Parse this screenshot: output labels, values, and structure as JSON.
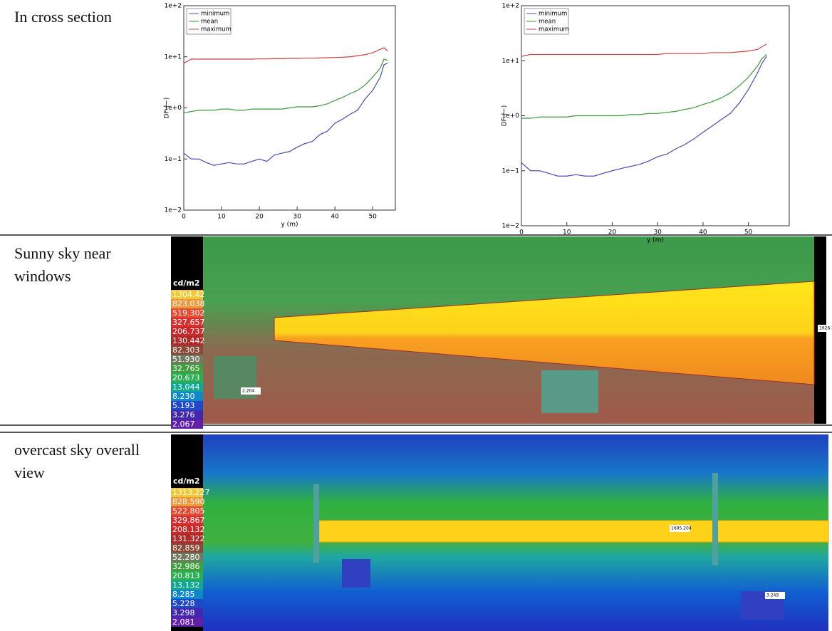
{
  "table": {
    "rows": [
      [
        "In cross section"
      ],
      [
        "Sunny sky near windows"
      ],
      [
        "overcast sky overall view"
      ]
    ]
  },
  "chart_data": [
    {
      "type": "line",
      "xlabel": "y (m)",
      "ylabel": "DF (−)",
      "log_y": true,
      "legend": "upper left",
      "x": [
        0,
        2,
        4,
        6,
        8,
        10,
        12,
        14,
        16,
        18,
        20,
        22,
        24,
        26,
        28,
        30,
        32,
        34,
        36,
        38,
        40,
        42,
        44,
        46,
        48,
        50,
        52,
        53,
        54
      ],
      "series": [
        {
          "name": "minimum",
          "color": "#4b4bb4",
          "values": [
            0.13,
            0.1,
            0.1,
            0.085,
            0.075,
            0.08,
            0.085,
            0.08,
            0.08,
            0.09,
            0.1,
            0.09,
            0.12,
            0.13,
            0.14,
            0.17,
            0.2,
            0.22,
            0.3,
            0.35,
            0.5,
            0.6,
            0.75,
            0.9,
            1.5,
            2.2,
            4,
            7,
            7.5
          ]
        },
        {
          "name": "mean",
          "color": "#3a9a3a",
          "values": [
            0.8,
            0.85,
            0.9,
            0.9,
            0.9,
            0.95,
            0.95,
            0.9,
            0.9,
            0.95,
            0.95,
            0.95,
            0.95,
            0.95,
            1.0,
            1.05,
            1.05,
            1.05,
            1.1,
            1.2,
            1.4,
            1.6,
            1.9,
            2.2,
            2.8,
            4,
            6,
            9,
            8.5
          ]
        },
        {
          "name": "maximum",
          "color": "#d04040",
          "values": [
            7.5,
            9,
            9,
            9,
            9,
            9,
            9,
            9,
            9,
            9,
            9.1,
            9.1,
            9.2,
            9.2,
            9.3,
            9.3,
            9.4,
            9.4,
            9.5,
            9.6,
            9.7,
            9.8,
            10,
            10.5,
            11,
            12,
            14,
            15,
            13
          ]
        }
      ],
      "xlim": [
        0,
        56
      ],
      "xticks": [
        0,
        10,
        20,
        30,
        40,
        50
      ],
      "ylim": [
        0.01,
        100
      ],
      "yticks": [
        {
          "value": 0.01,
          "label": "1e−2"
        },
        {
          "value": 0.1,
          "label": "1e−1"
        },
        {
          "value": 1,
          "label": "1e+0"
        },
        {
          "value": 10,
          "label": "1e+1"
        },
        {
          "value": 100,
          "label": "1e+2"
        }
      ]
    },
    {
      "type": "line",
      "xlabel": "y (m)",
      "ylabel": "DF (−)",
      "log_y": true,
      "legend": "upper left",
      "x": [
        0,
        2,
        4,
        6,
        8,
        10,
        12,
        14,
        16,
        18,
        20,
        22,
        24,
        26,
        28,
        30,
        32,
        34,
        36,
        38,
        40,
        42,
        44,
        46,
        48,
        50,
        52,
        53,
        54
      ],
      "series": [
        {
          "name": "minimum",
          "color": "#4b4bb4",
          "values": [
            0.14,
            0.1,
            0.1,
            0.09,
            0.08,
            0.08,
            0.085,
            0.08,
            0.08,
            0.09,
            0.1,
            0.11,
            0.12,
            0.13,
            0.15,
            0.18,
            0.2,
            0.25,
            0.3,
            0.38,
            0.5,
            0.65,
            0.85,
            1.1,
            1.7,
            3,
            6,
            9,
            12
          ]
        },
        {
          "name": "mean",
          "color": "#3a9a3a",
          "values": [
            0.9,
            0.9,
            0.95,
            0.95,
            0.95,
            0.95,
            1.0,
            1.0,
            1.0,
            1.0,
            1.0,
            1.0,
            1.05,
            1.05,
            1.1,
            1.1,
            1.15,
            1.2,
            1.3,
            1.4,
            1.6,
            1.8,
            2.1,
            2.6,
            3.5,
            5,
            8,
            11,
            13
          ]
        },
        {
          "name": "maximum",
          "color": "#d04040",
          "values": [
            12,
            13,
            13,
            13,
            13,
            13,
            13,
            13,
            13,
            13,
            13,
            13,
            13,
            13,
            13,
            13,
            13.5,
            13.5,
            13.5,
            13.5,
            13.5,
            14,
            14,
            14,
            14.5,
            15,
            16,
            18,
            20
          ]
        }
      ],
      "xlim": [
        0,
        59
      ],
      "xticks": [
        0,
        10,
        20,
        30,
        40,
        50
      ],
      "ylim": [
        0.01,
        100
      ],
      "yticks": [
        {
          "value": 0.01,
          "label": "1e−2"
        },
        {
          "value": 0.1,
          "label": "1e−1"
        },
        {
          "value": 1,
          "label": "1e+0"
        },
        {
          "value": 10,
          "label": "1e+1"
        },
        {
          "value": 100,
          "label": "1e+2"
        }
      ]
    }
  ],
  "images": [
    {
      "legend_title": "cd/m2",
      "legend": [
        "1304.42",
        "823.038",
        "519.302",
        "327.657",
        "206.737",
        "130.442",
        "82.303",
        "51.930",
        "32.765",
        "20.673",
        "13.044",
        "8.230",
        "5.193",
        "3.276",
        "2.067"
      ],
      "annotations": [
        "2.204",
        "1626.330"
      ]
    },
    {
      "legend_title": "cd/m2",
      "legend": [
        "1313.227",
        "828.590",
        "522.805",
        "329.867",
        "208.132",
        "131.322",
        "82.859",
        "52.280",
        "32.986",
        "20.813",
        "13.132",
        "8.285",
        "5.228",
        "3.298",
        "2.081"
      ],
      "annotations": [
        "1695.204",
        "3.249"
      ]
    }
  ]
}
